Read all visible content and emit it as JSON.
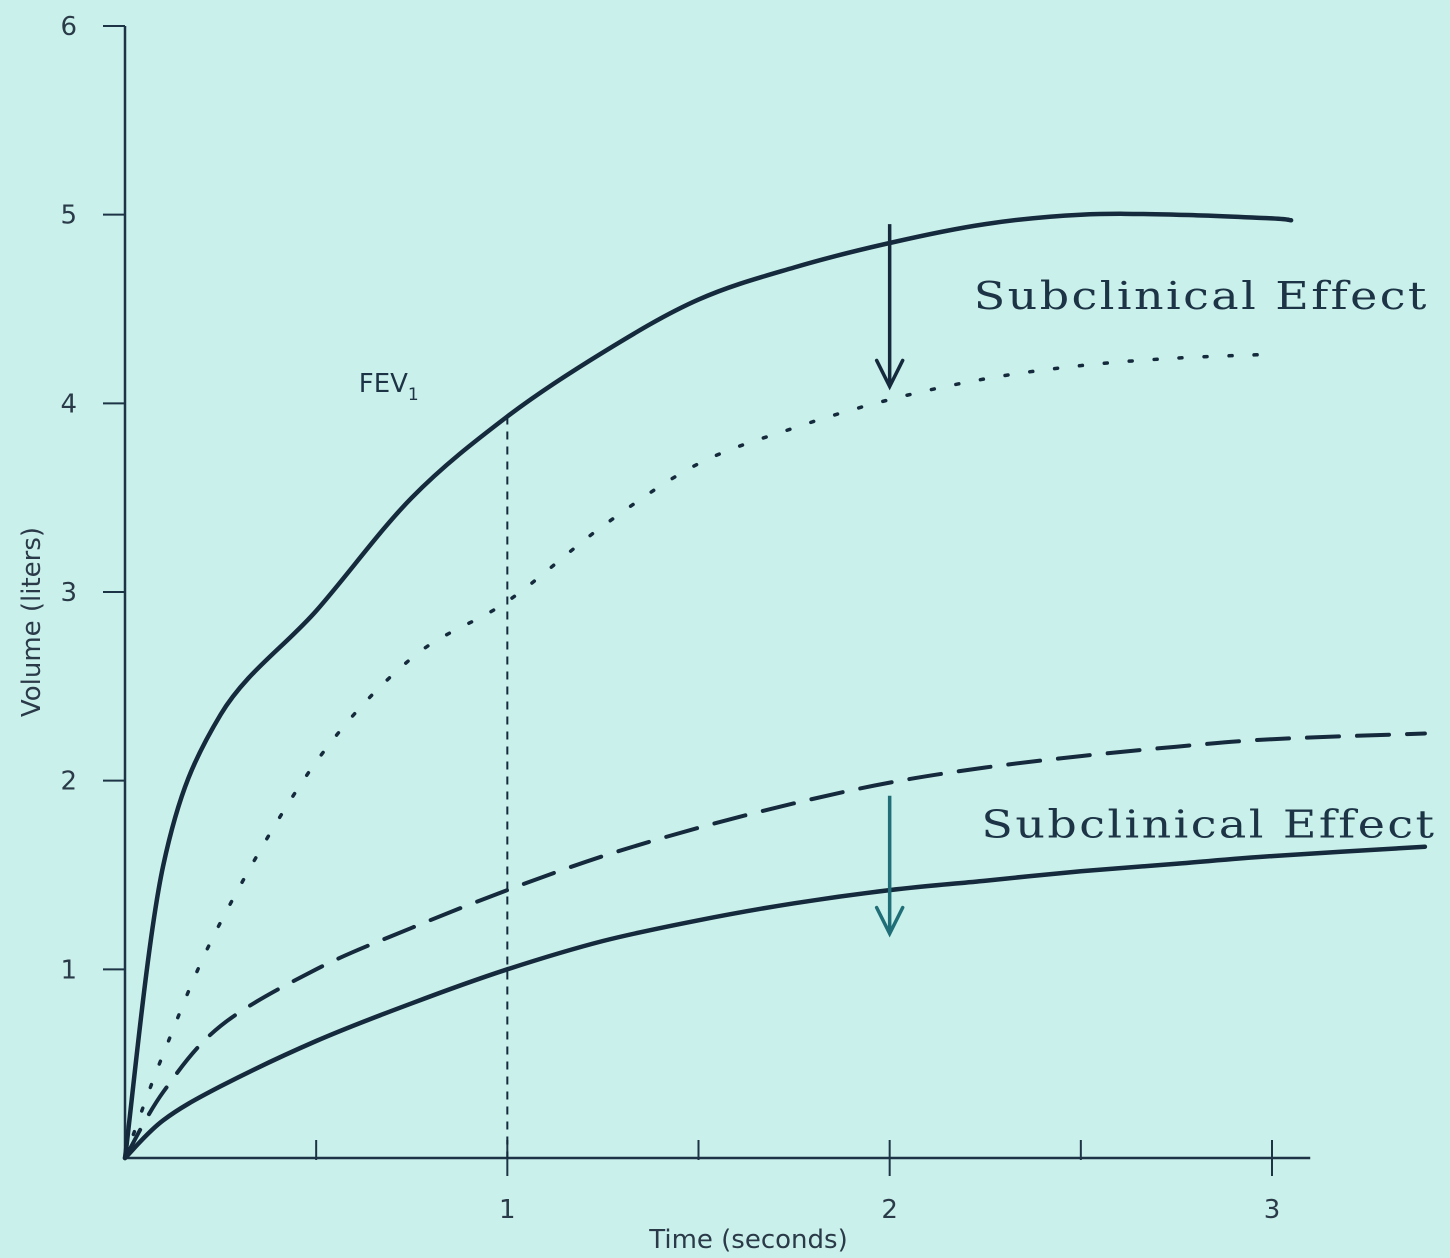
{
  "chart_data": {
    "type": "line",
    "title": "",
    "xlabel": "Time (seconds)",
    "ylabel": "Volume (liters)",
    "xlim": [
      0,
      3.1
    ],
    "ylim": [
      0,
      6
    ],
    "x_ticks": [
      0.5,
      1,
      1.5,
      2,
      2.5,
      3
    ],
    "x_tick_labels": [
      {
        "x": 1,
        "label": "1"
      },
      {
        "x": 2,
        "label": "2"
      },
      {
        "x": 3,
        "label": "3"
      }
    ],
    "y_ticks": [
      {
        "y": 1,
        "label": "1"
      },
      {
        "y": 2,
        "label": "2"
      },
      {
        "y": 3,
        "label": "3"
      },
      {
        "y": 4,
        "label": "4"
      },
      {
        "y": 5,
        "label": "5"
      },
      {
        "y": 6,
        "label": "6"
      }
    ],
    "grid": false,
    "series": [
      {
        "style": "solid",
        "color": "#152a3c",
        "x": [
          0,
          0.1,
          0.25,
          0.5,
          0.75,
          1,
          1.25,
          1.5,
          1.75,
          2,
          2.25,
          2.5,
          2.75,
          3,
          3.05
        ],
        "y": [
          0,
          1.55,
          2.35,
          2.9,
          3.5,
          3.93,
          4.27,
          4.55,
          4.72,
          4.85,
          4.95,
          5.0,
          5.0,
          4.98,
          4.97
        ]
      },
      {
        "style": "dotted",
        "color": "#152a3c",
        "x": [
          0,
          0.1,
          0.25,
          0.5,
          0.75,
          1,
          1.25,
          1.5,
          1.75,
          2,
          2.25,
          2.5,
          2.75,
          3
        ],
        "y": [
          0,
          0.55,
          1.25,
          2.1,
          2.65,
          2.95,
          3.35,
          3.68,
          3.87,
          4.02,
          4.13,
          4.2,
          4.24,
          4.26
        ]
      },
      {
        "style": "dashed",
        "color": "#152a3c",
        "x": [
          0,
          0.1,
          0.25,
          0.5,
          0.75,
          1,
          1.25,
          1.5,
          1.75,
          2,
          2.25,
          2.5,
          2.75,
          3,
          3.4
        ],
        "y": [
          0,
          0.35,
          0.7,
          1.0,
          1.22,
          1.42,
          1.6,
          1.75,
          1.88,
          1.99,
          2.07,
          2.13,
          2.18,
          2.22,
          2.25
        ]
      },
      {
        "style": "solid",
        "color": "#152a3c",
        "x": [
          0,
          0.1,
          0.25,
          0.5,
          0.75,
          1,
          1.25,
          1.5,
          1.75,
          2,
          2.25,
          2.5,
          2.75,
          3,
          3.4
        ],
        "y": [
          0,
          0.2,
          0.38,
          0.62,
          0.82,
          1.0,
          1.15,
          1.26,
          1.35,
          1.42,
          1.47,
          1.52,
          1.56,
          1.6,
          1.65
        ]
      }
    ],
    "reference_line": {
      "x": 1,
      "style": "dashed"
    },
    "annotations": [
      {
        "text": "FEV",
        "subscript": "1",
        "x": 0.92,
        "y": 4.05
      },
      {
        "text": "Subclinical Effect",
        "x": 2.22,
        "y": 4.5
      },
      {
        "text": "Subclinical Effect",
        "x": 2.24,
        "y": 1.7
      }
    ],
    "arrows": [
      {
        "x": 2,
        "y_from": 4.95,
        "y_to": 4.1,
        "color": "#152a3c"
      },
      {
        "x": 2,
        "y_from": 1.92,
        "y_to": 1.2,
        "color": "#1f6e78"
      }
    ]
  }
}
